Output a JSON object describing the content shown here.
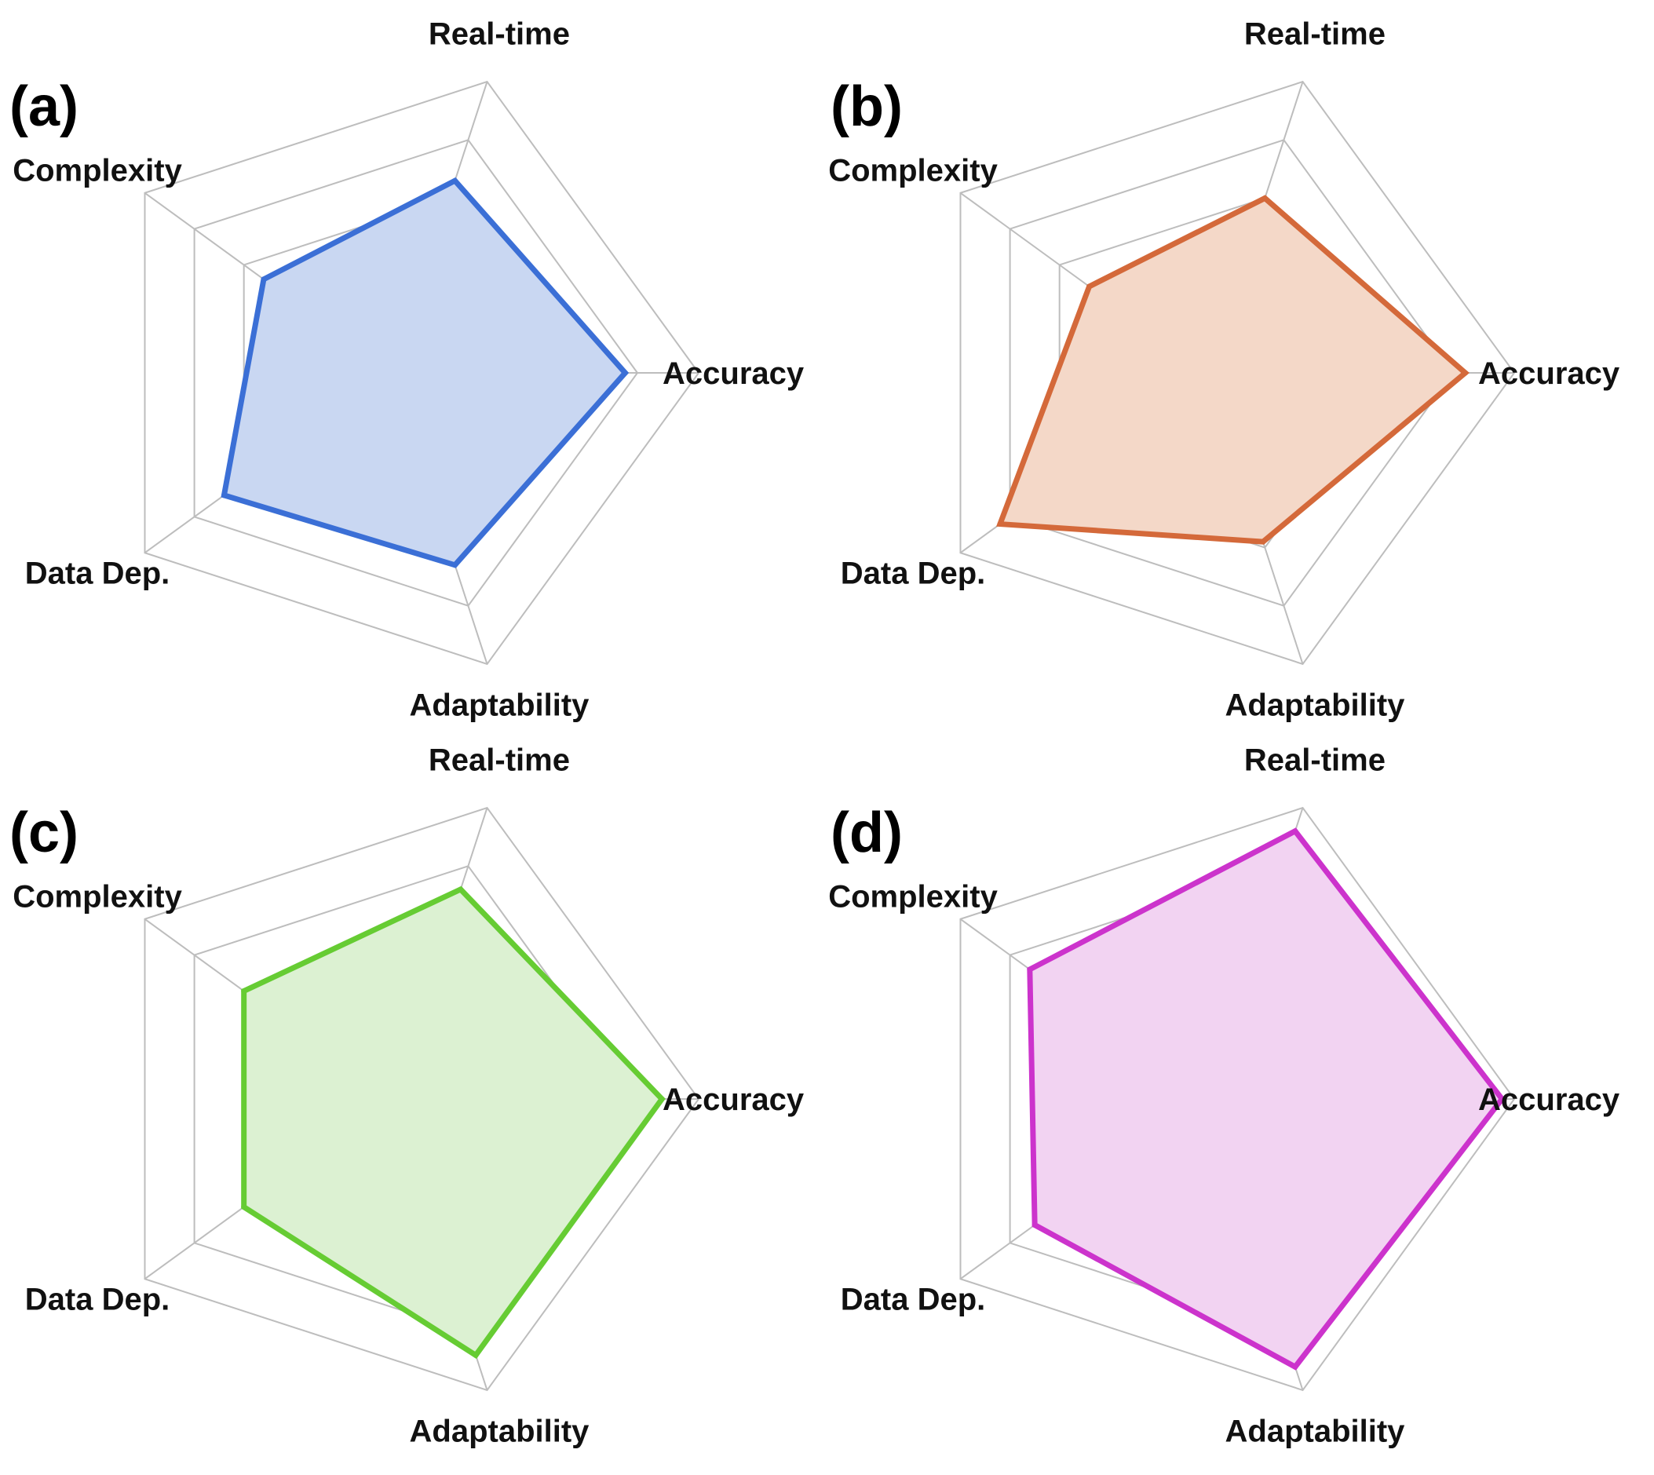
{
  "chart_data": [
    {
      "type": "radar",
      "panel_label": "(a)",
      "axes": [
        "Accuracy",
        "Real-time",
        "Complexity",
        "Data Dep.",
        "Adaptability"
      ],
      "rmax": 5,
      "ring_levels": [
        1,
        2,
        3,
        4,
        5
      ],
      "grid": true,
      "values": [
        3.8,
        3.3,
        2.6,
        3.4,
        3.3
      ],
      "color": "#3b6fd6",
      "fill": "#c9d7f2"
    },
    {
      "type": "radar",
      "panel_label": "(b)",
      "axes": [
        "Accuracy",
        "Real-time",
        "Complexity",
        "Data Dep.",
        "Adaptability"
      ],
      "rmax": 5,
      "ring_levels": [
        1,
        2,
        3,
        4,
        5
      ],
      "grid": true,
      "values": [
        4.2,
        3.0,
        2.4,
        4.2,
        2.9
      ],
      "color": "#d4693a",
      "fill": "#f4d8c8"
    },
    {
      "type": "radar",
      "panel_label": "(c)",
      "axes": [
        "Accuracy",
        "Real-time",
        "Complexity",
        "Data Dep.",
        "Adaptability"
      ],
      "rmax": 5,
      "ring_levels": [
        1,
        2,
        3,
        4,
        5
      ],
      "grid": true,
      "values": [
        4.4,
        3.6,
        3.0,
        3.0,
        4.4
      ],
      "color": "#66cc33",
      "fill": "#dcf1d2"
    },
    {
      "type": "radar",
      "panel_label": "(d)",
      "axes": [
        "Accuracy",
        "Real-time",
        "Complexity",
        "Data Dep.",
        "Adaptability"
      ],
      "rmax": 5,
      "ring_levels": [
        1,
        2,
        3,
        4,
        5
      ],
      "grid": true,
      "values": [
        4.8,
        4.6,
        3.6,
        3.5,
        4.6
      ],
      "color": "#cc33cc",
      "fill": "#f2d3f2"
    }
  ]
}
